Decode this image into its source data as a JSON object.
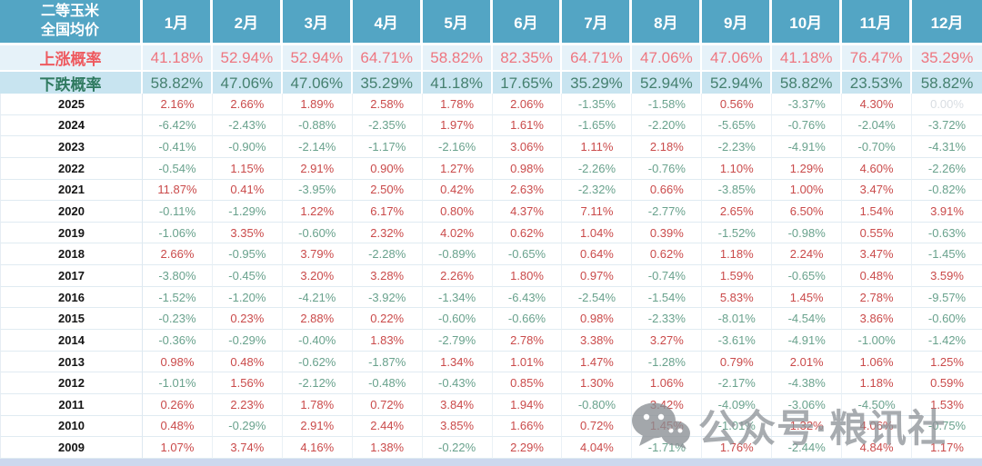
{
  "chart_data": {
    "type": "table",
    "corner_header": [
      "二等玉米",
      "全国均价"
    ],
    "columns": [
      "1月",
      "2月",
      "3月",
      "4月",
      "5月",
      "6月",
      "7月",
      "8月",
      "9月",
      "10月",
      "11月",
      "12月"
    ],
    "probability_rows": [
      {
        "label": "上涨概率",
        "values": [
          "41.18%",
          "52.94%",
          "52.94%",
          "64.71%",
          "58.82%",
          "82.35%",
          "64.71%",
          "47.06%",
          "47.06%",
          "41.18%",
          "76.47%",
          "35.29%"
        ]
      },
      {
        "label": "下跌概率",
        "values": [
          "58.82%",
          "47.06%",
          "47.06%",
          "35.29%",
          "41.18%",
          "17.65%",
          "35.29%",
          "52.94%",
          "52.94%",
          "58.82%",
          "23.53%",
          "58.82%"
        ]
      }
    ],
    "year_rows": [
      {
        "year": "2025",
        "values": [
          "2.16%",
          "2.66%",
          "1.89%",
          "2.58%",
          "1.78%",
          "2.06%",
          "-1.35%",
          "-1.58%",
          "0.56%",
          "-3.37%",
          "4.30%",
          "0.00%"
        ]
      },
      {
        "year": "2024",
        "values": [
          "-6.42%",
          "-2.43%",
          "-0.88%",
          "-2.35%",
          "1.97%",
          "1.61%",
          "-1.65%",
          "-2.20%",
          "-5.65%",
          "-0.76%",
          "-2.04%",
          "-3.72%"
        ]
      },
      {
        "year": "2023",
        "values": [
          "-0.41%",
          "-0.90%",
          "-2.14%",
          "-1.17%",
          "-2.16%",
          "3.06%",
          "1.11%",
          "2.18%",
          "-2.23%",
          "-4.91%",
          "-0.70%",
          "-4.31%"
        ]
      },
      {
        "year": "2022",
        "values": [
          "-0.54%",
          "1.15%",
          "2.91%",
          "0.90%",
          "1.27%",
          "0.98%",
          "-2.26%",
          "-0.76%",
          "1.10%",
          "1.29%",
          "4.60%",
          "-2.26%"
        ]
      },
      {
        "year": "2021",
        "values": [
          "11.87%",
          "0.41%",
          "-3.95%",
          "2.50%",
          "0.42%",
          "2.63%",
          "-2.32%",
          "0.66%",
          "-3.85%",
          "1.00%",
          "3.47%",
          "-0.82%"
        ]
      },
      {
        "year": "2020",
        "values": [
          "-0.11%",
          "-1.29%",
          "1.22%",
          "6.17%",
          "0.80%",
          "4.37%",
          "7.11%",
          "-2.77%",
          "2.65%",
          "6.50%",
          "1.54%",
          "3.91%"
        ]
      },
      {
        "year": "2019",
        "values": [
          "-1.06%",
          "3.35%",
          "-0.60%",
          "2.32%",
          "4.02%",
          "0.62%",
          "1.04%",
          "0.39%",
          "-1.52%",
          "-0.98%",
          "0.55%",
          "-0.63%"
        ]
      },
      {
        "year": "2018",
        "values": [
          "2.66%",
          "-0.95%",
          "3.79%",
          "-2.28%",
          "-0.89%",
          "-0.65%",
          "0.64%",
          "0.62%",
          "1.18%",
          "2.24%",
          "3.47%",
          "-1.45%"
        ]
      },
      {
        "year": "2017",
        "values": [
          "-3.80%",
          "-0.45%",
          "3.20%",
          "3.28%",
          "2.26%",
          "1.80%",
          "0.97%",
          "-0.74%",
          "1.59%",
          "-0.65%",
          "0.48%",
          "3.59%"
        ]
      },
      {
        "year": "2016",
        "values": [
          "-1.52%",
          "-1.20%",
          "-4.21%",
          "-3.92%",
          "-1.34%",
          "-6.43%",
          "-2.54%",
          "-1.54%",
          "5.83%",
          "1.45%",
          "2.78%",
          "-9.57%"
        ]
      },
      {
        "year": "2015",
        "values": [
          "-0.23%",
          "0.23%",
          "2.88%",
          "0.22%",
          "-0.60%",
          "-0.66%",
          "0.98%",
          "-2.33%",
          "-8.01%",
          "-4.54%",
          "3.86%",
          "-0.60%"
        ]
      },
      {
        "year": "2014",
        "values": [
          "-0.36%",
          "-0.29%",
          "-0.40%",
          "1.83%",
          "-2.79%",
          "2.78%",
          "3.38%",
          "3.27%",
          "-3.61%",
          "-4.91%",
          "-1.00%",
          "-1.42%"
        ]
      },
      {
        "year": "2013",
        "values": [
          "0.98%",
          "0.48%",
          "-0.62%",
          "-1.87%",
          "1.34%",
          "1.01%",
          "1.47%",
          "-1.28%",
          "0.79%",
          "2.01%",
          "1.06%",
          "1.25%"
        ]
      },
      {
        "year": "2012",
        "values": [
          "-1.01%",
          "1.56%",
          "-2.12%",
          "-0.48%",
          "-0.43%",
          "0.85%",
          "1.30%",
          "1.06%",
          "-2.17%",
          "-4.38%",
          "1.18%",
          "0.59%"
        ]
      },
      {
        "year": "2011",
        "values": [
          "0.26%",
          "2.23%",
          "1.78%",
          "0.72%",
          "3.84%",
          "1.94%",
          "-0.80%",
          "3.42%",
          "-4.09%",
          "-3.06%",
          "-4.50%",
          "1.53%"
        ]
      },
      {
        "year": "2010",
        "values": [
          "0.48%",
          "-0.29%",
          "2.91%",
          "2.44%",
          "3.85%",
          "1.66%",
          "0.72%",
          "1.45%",
          "-1.01%",
          "1.32%",
          "4.06%",
          "-0.75%"
        ]
      },
      {
        "year": "2009",
        "values": [
          "1.07%",
          "3.74%",
          "4.16%",
          "1.38%",
          "-0.22%",
          "2.29%",
          "4.04%",
          "-1.71%",
          "1.76%",
          "-2.44%",
          "4.84%",
          "1.17%"
        ]
      }
    ]
  },
  "watermark": {
    "icon": "wechat-icon",
    "text": "公众号·粮讯社"
  },
  "colors": {
    "header_bg": "#53a5c4",
    "rise_row_bg": "#e6f2f9",
    "fall_row_bg": "#c8e4f0",
    "rise_text": "#ee5a5f",
    "fall_text": "#2f7a60",
    "positive_value": "#ca4a4a",
    "negative_value": "#69a28d",
    "zero_value": "#d8dde2"
  }
}
